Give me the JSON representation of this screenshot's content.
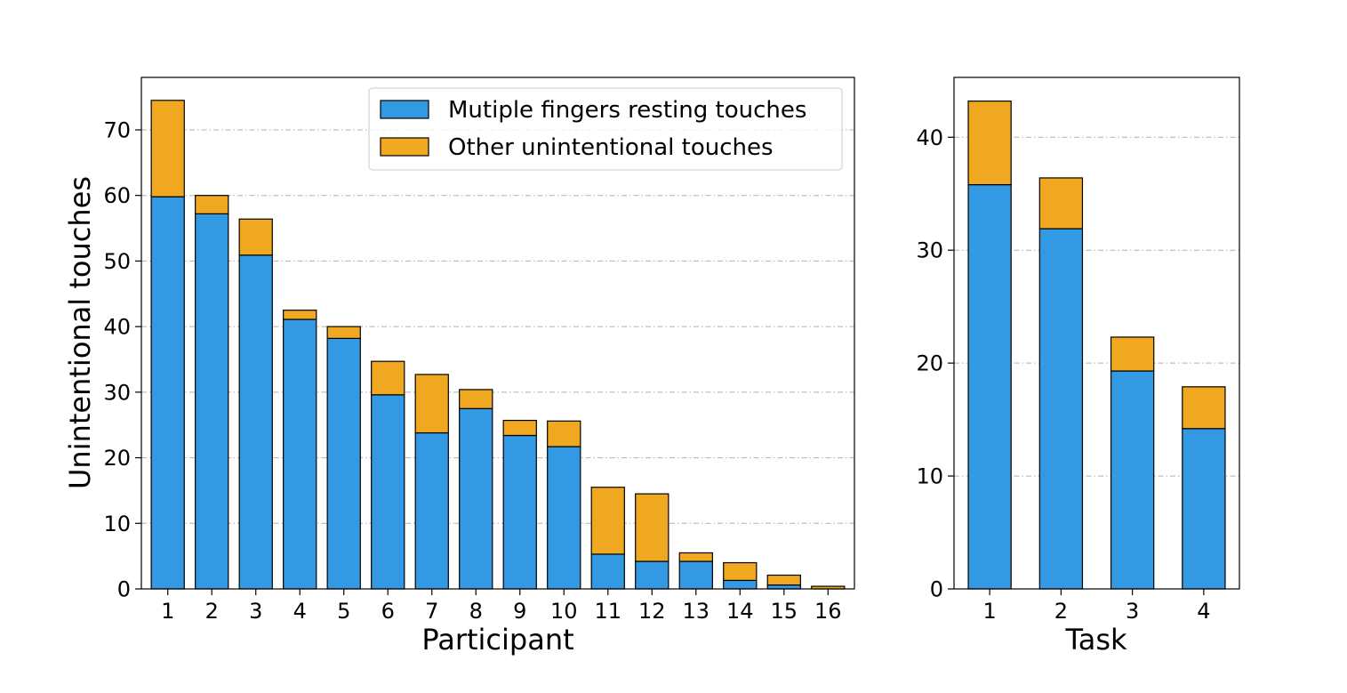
{
  "colors": {
    "resting": "#3399e3",
    "other": "#f0a820",
    "edge": "#000000",
    "grid": "#b0b0b0"
  },
  "chart_data": [
    {
      "type": "bar",
      "stacked": true,
      "xlabel": "Participant",
      "ylabel": "Unintentional touches",
      "categories": [
        "1",
        "2",
        "3",
        "4",
        "5",
        "6",
        "7",
        "8",
        "9",
        "10",
        "11",
        "12",
        "13",
        "14",
        "15",
        "16"
      ],
      "series": [
        {
          "name": "Mutiple fingers resting touches",
          "color_key": "resting",
          "values": [
            59.8,
            57.2,
            50.9,
            41.1,
            38.2,
            29.6,
            23.8,
            27.5,
            23.4,
            21.7,
            5.3,
            4.2,
            4.2,
            1.3,
            0.6,
            0.0
          ]
        },
        {
          "name": "Other unintentional touches",
          "color_key": "other",
          "values": [
            14.7,
            2.8,
            5.5,
            1.4,
            1.8,
            5.1,
            8.9,
            2.9,
            2.3,
            3.9,
            10.2,
            10.3,
            1.3,
            2.7,
            1.5,
            0.4
          ]
        }
      ],
      "ylim": [
        0,
        78
      ],
      "yticks": [
        0,
        10,
        20,
        30,
        40,
        50,
        60,
        70
      ],
      "grid": "y",
      "legend": "upper-right"
    },
    {
      "type": "bar",
      "stacked": true,
      "xlabel": "Task",
      "ylabel": "",
      "categories": [
        "1",
        "2",
        "3",
        "4"
      ],
      "series": [
        {
          "name": "Mutiple fingers resting touches",
          "color_key": "resting",
          "values": [
            35.8,
            31.9,
            19.3,
            14.2
          ]
        },
        {
          "name": "Other unintentional touches",
          "color_key": "other",
          "values": [
            7.4,
            4.5,
            3.0,
            3.7
          ]
        }
      ],
      "ylim": [
        0,
        45.3
      ],
      "yticks": [
        0,
        10,
        20,
        30,
        40
      ],
      "grid": "y",
      "legend": "none"
    }
  ]
}
